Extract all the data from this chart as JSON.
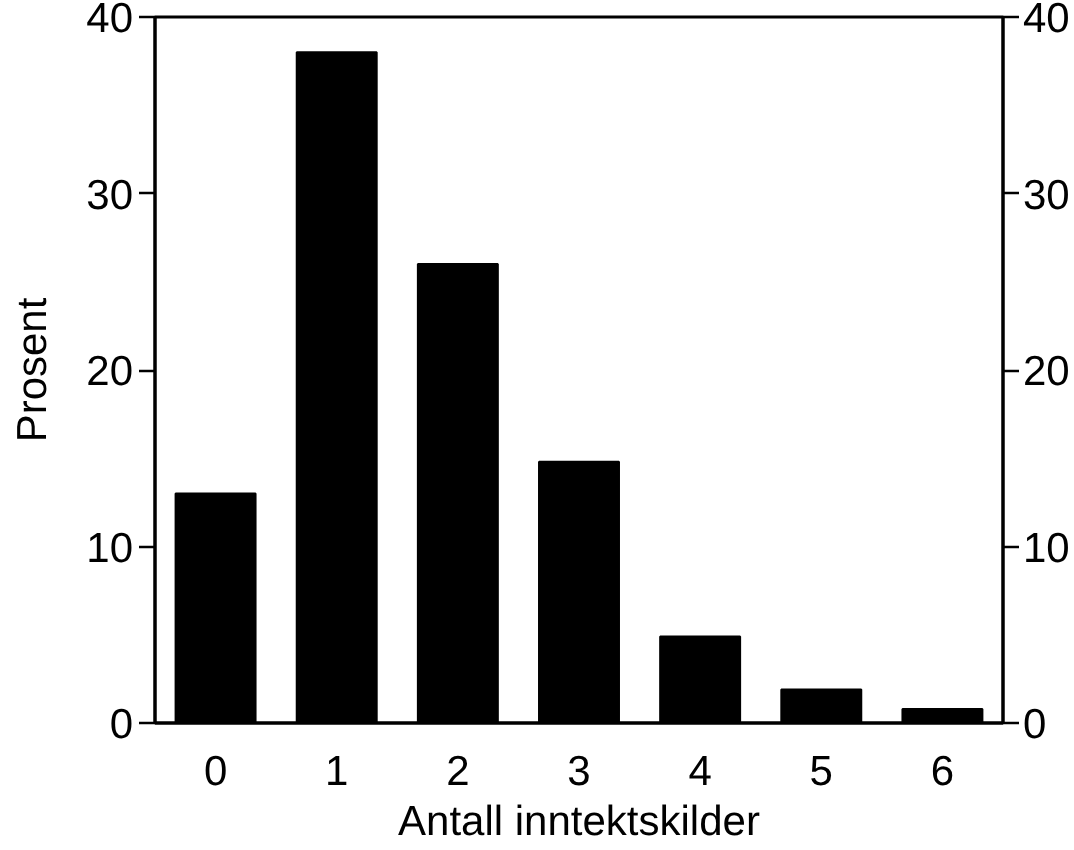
{
  "chart_data": {
    "type": "bar",
    "xlabel": "Antall inntektskilder",
    "ylabel": "Prosent",
    "categories": [
      "0",
      "1",
      "2",
      "3",
      "4",
      "5",
      "6"
    ],
    "values": [
      13.0,
      38.0,
      26.0,
      14.8,
      4.9,
      1.9,
      0.8
    ],
    "color": "#000000",
    "ylim": [
      0,
      40
    ],
    "yticks": [
      0,
      10,
      20,
      30,
      40
    ],
    "y2lim": [
      0,
      40
    ],
    "y2ticks": [
      0,
      10,
      20,
      30,
      40
    ],
    "grid": false
  }
}
